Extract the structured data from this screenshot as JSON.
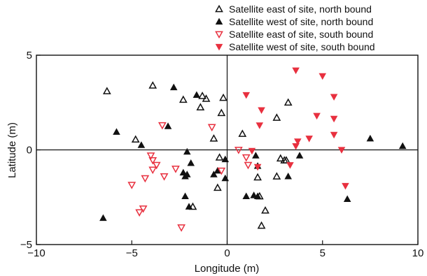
{
  "chart_data": {
    "type": "scatter",
    "xlabel": "Longitude (m)",
    "ylabel": "Latitude (m)",
    "xlim": [
      -10,
      10
    ],
    "ylim": [
      -5,
      5
    ],
    "x_ticks": [
      -10,
      -5,
      0,
      5,
      10
    ],
    "y_ticks": [
      -5,
      0,
      5
    ],
    "x_tick_labels": [
      "−10",
      "−5",
      "0",
      "5",
      "10"
    ],
    "y_tick_labels": [
      "−5",
      "0",
      "5"
    ],
    "zero_lines": true,
    "grid": false,
    "legend_position": "top-right, above plot",
    "series": [
      {
        "name": "Satellite east of site, north bound",
        "marker": "triangle-up-open",
        "color": "#111111",
        "points": [
          [
            -6.3,
            3.1
          ],
          [
            -3.9,
            3.4
          ],
          [
            -2.3,
            2.65
          ],
          [
            -1.3,
            2.85
          ],
          [
            -1.1,
            2.7
          ],
          [
            -1.4,
            2.25
          ],
          [
            -0.2,
            2.75
          ],
          [
            -0.3,
            1.95
          ],
          [
            -4.8,
            0.55
          ],
          [
            -0.7,
            0.6
          ],
          [
            0.8,
            0.85
          ],
          [
            2.6,
            1.7
          ],
          [
            3.2,
            2.5
          ],
          [
            -0.4,
            -0.4
          ],
          [
            1.6,
            -1.45
          ],
          [
            2.6,
            -1.4
          ],
          [
            2.8,
            -0.45
          ],
          [
            3.0,
            -0.55
          ],
          [
            3.1,
            -0.55
          ],
          [
            1.7,
            -2.45
          ],
          [
            -1.8,
            -3.0
          ],
          [
            2.0,
            -3.2
          ],
          [
            1.8,
            -4.0
          ],
          [
            -0.5,
            -2.0
          ]
        ]
      },
      {
        "name": "Satellite west of site, north bound",
        "marker": "triangle-up-filled",
        "color": "#111111",
        "points": [
          [
            -5.8,
            0.95
          ],
          [
            -4.5,
            0.25
          ],
          [
            -3.1,
            1.25
          ],
          [
            -2.8,
            3.3
          ],
          [
            -1.6,
            2.9
          ],
          [
            -0.1,
            -0.5
          ],
          [
            -0.1,
            -1.5
          ],
          [
            -2.1,
            -0.1
          ],
          [
            -1.9,
            -0.7
          ],
          [
            -2.3,
            -1.2
          ],
          [
            -2.1,
            -1.3
          ],
          [
            -2.2,
            -1.4
          ],
          [
            -0.7,
            -1.3
          ],
          [
            -0.5,
            -1.1
          ],
          [
            -2.2,
            -2.45
          ],
          [
            -2.0,
            -3.0
          ],
          [
            1.0,
            -2.45
          ],
          [
            1.4,
            -2.4
          ],
          [
            1.6,
            -2.45
          ],
          [
            1.5,
            -0.3
          ],
          [
            1.6,
            -0.85
          ],
          [
            3.2,
            -1.4
          ],
          [
            3.8,
            -0.3
          ],
          [
            7.5,
            0.6
          ],
          [
            9.2,
            0.2
          ],
          [
            6.3,
            -2.6
          ],
          [
            -6.5,
            -3.6
          ]
        ]
      },
      {
        "name": "Satellite east of site, south bound",
        "marker": "triangle-down-open",
        "color": "#e8303f",
        "points": [
          [
            -3.4,
            1.3
          ],
          [
            -0.8,
            1.2
          ],
          [
            -4.0,
            -0.3
          ],
          [
            -3.9,
            -0.55
          ],
          [
            -3.7,
            -0.8
          ],
          [
            -4.3,
            -1.5
          ],
          [
            -3.3,
            -1.4
          ],
          [
            -2.7,
            -1.0
          ],
          [
            -5.0,
            -1.85
          ],
          [
            -3.9,
            -1.05
          ],
          [
            -0.3,
            -1.1
          ],
          [
            0.6,
            0.0
          ],
          [
            1.0,
            -0.4
          ],
          [
            1.1,
            -0.8
          ],
          [
            -4.6,
            -3.3
          ],
          [
            -4.4,
            -3.1
          ],
          [
            -2.4,
            -4.1
          ]
        ]
      },
      {
        "name": "Satellite west of site, south bound",
        "marker": "triangle-down-filled",
        "color": "#e8303f",
        "points": [
          [
            3.6,
            4.2
          ],
          [
            5.0,
            3.9
          ],
          [
            5.6,
            2.8
          ],
          [
            1.0,
            2.9
          ],
          [
            1.8,
            2.1
          ],
          [
            1.7,
            1.3
          ],
          [
            4.7,
            1.8
          ],
          [
            5.6,
            1.65
          ],
          [
            4.3,
            0.6
          ],
          [
            5.6,
            0.8
          ],
          [
            3.7,
            0.45
          ],
          [
            3.6,
            0.2
          ],
          [
            6.0,
            0.0
          ],
          [
            1.3,
            -0.05
          ],
          [
            1.6,
            -0.9
          ],
          [
            3.3,
            -0.8
          ],
          [
            6.2,
            -1.9
          ]
        ]
      }
    ]
  }
}
